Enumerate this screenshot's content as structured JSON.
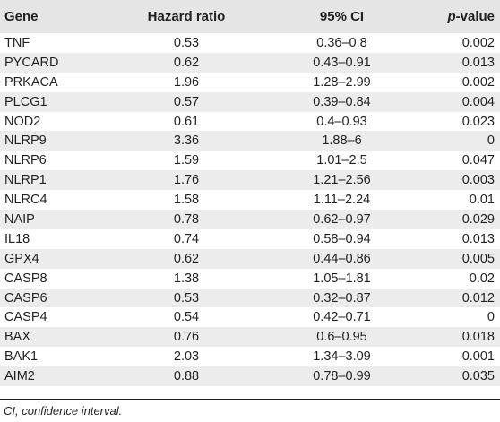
{
  "table": {
    "headers": {
      "gene": "Gene",
      "hazard_ratio": "Hazard ratio",
      "ci": "95% CI",
      "p_prefix": "p",
      "p_suffix": "-value"
    },
    "rows": [
      {
        "gene": "TNF",
        "hr": "0.53",
        "ci": "0.36–0.8",
        "p": "0.002"
      },
      {
        "gene": "PYCARD",
        "hr": "0.62",
        "ci": "0.43–0.91",
        "p": "0.013"
      },
      {
        "gene": "PRKACA",
        "hr": "1.96",
        "ci": "1.28–2.99",
        "p": "0.002"
      },
      {
        "gene": "PLCG1",
        "hr": "0.57",
        "ci": "0.39–0.84",
        "p": "0.004"
      },
      {
        "gene": "NOD2",
        "hr": "0.61",
        "ci": "0.4–0.93",
        "p": "0.023"
      },
      {
        "gene": "NLRP9",
        "hr": "3.36",
        "ci": "1.88–6",
        "p": "0"
      },
      {
        "gene": "NLRP6",
        "hr": "1.59",
        "ci": "1.01–2.5",
        "p": "0.047"
      },
      {
        "gene": "NLRP1",
        "hr": "1.76",
        "ci": "1.21–2.56",
        "p": "0.003"
      },
      {
        "gene": "NLRC4",
        "hr": "1.58",
        "ci": "1.11–2.24",
        "p": "0.01"
      },
      {
        "gene": "NAIP",
        "hr": "0.78",
        "ci": "0.62–0.97",
        "p": "0.029"
      },
      {
        "gene": "IL18",
        "hr": "0.74",
        "ci": "0.58–0.94",
        "p": "0.013"
      },
      {
        "gene": "GPX4",
        "hr": "0.62",
        "ci": "0.44–0.86",
        "p": "0.005"
      },
      {
        "gene": "CASP8",
        "hr": "1.38",
        "ci": "1.05–1.81",
        "p": "0.02"
      },
      {
        "gene": "CASP6",
        "hr": "0.53",
        "ci": "0.32–0.87",
        "p": "0.012"
      },
      {
        "gene": "CASP4",
        "hr": "0.54",
        "ci": "0.42–0.71",
        "p": "0"
      },
      {
        "gene": "BAX",
        "hr": "0.76",
        "ci": "0.6–0.95",
        "p": "0.018"
      },
      {
        "gene": "BAK1",
        "hr": "2.03",
        "ci": "1.34–3.09",
        "p": "0.001"
      },
      {
        "gene": "AIM2",
        "hr": "0.88",
        "ci": "0.78–0.99",
        "p": "0.035"
      }
    ]
  },
  "footnote": "CI, confidence interval.",
  "colors": {
    "header_bg": "#e5e5e5",
    "stripe_bg": "#ececec",
    "text": "#231f20"
  }
}
